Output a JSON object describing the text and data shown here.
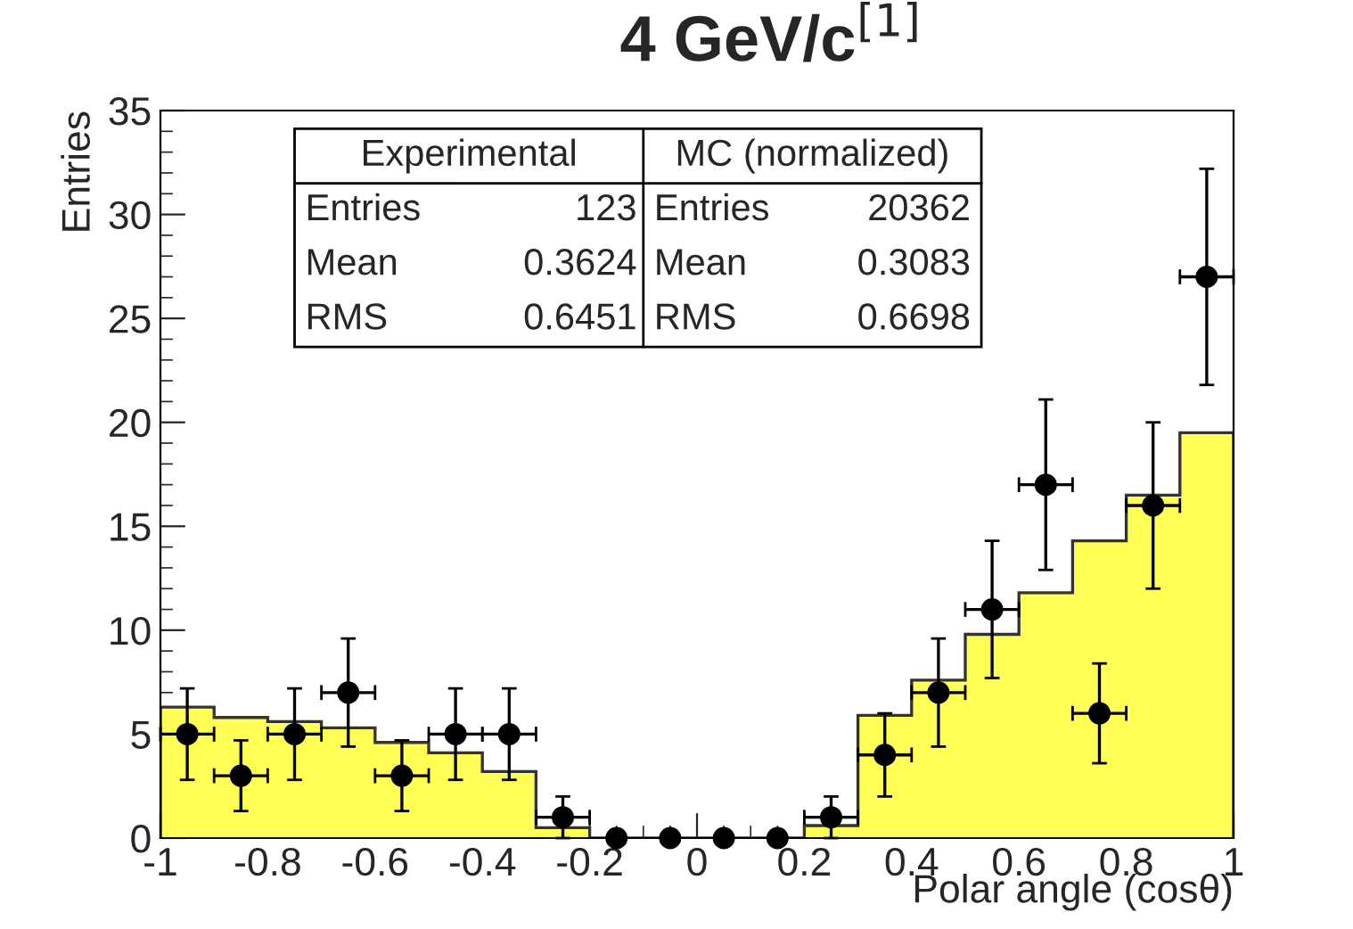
{
  "chart_data": {
    "type": "histogram",
    "title": "4 GeV/c$^{[1]}$",
    "xlabel": "Polar angle (cosθ)",
    "ylabel": "Entries",
    "bins": [
      -1,
      -0.9,
      -0.8,
      -0.7,
      -0.6,
      -0.5,
      -0.4,
      -0.3,
      -0.2,
      -0.1,
      0,
      0.1,
      0.2,
      0.3,
      0.4,
      0.5,
      0.6,
      0.7,
      0.8,
      0.9,
      1
    ],
    "series": [
      {
        "color": "#ffff55",
        "values": [
          6.3,
          5.8,
          5.6,
          5.3,
          4.6,
          4.1,
          3.2,
          0.5,
          0,
          0,
          0,
          0,
          0.6,
          5.9,
          7.6,
          9.8,
          11.8,
          14.3,
          16.5,
          19.5
        ]
      },
      {
        "type": "scatter",
        "color": "#000000",
        "x": [
          -0.95,
          -0.85,
          -0.75,
          -0.65,
          -0.55,
          -0.45,
          -0.35,
          -0.25,
          -0.15,
          -0.05,
          0.05,
          0.15,
          0.25,
          0.35,
          0.45,
          0.55,
          0.65,
          0.75,
          0.85,
          0.95
        ],
        "values": [
          5,
          3,
          5,
          7,
          3,
          5,
          5,
          1,
          0,
          0,
          0,
          0,
          1,
          4,
          7,
          11,
          17,
          6,
          16,
          27
        ],
        "errors": [
          2.2,
          1.7,
          2.2,
          2.6,
          1.7,
          2.2,
          2.2,
          1,
          null,
          null,
          null,
          null,
          1,
          2,
          2.6,
          3.3,
          4.1,
          2.4,
          4,
          5.2
        ],
        "xerrors": [
          0.05,
          0.05,
          0.05,
          0.05,
          0.05,
          0.05,
          0.05,
          0.05,
          null,
          null,
          null,
          null,
          0.05,
          0.05,
          0.05,
          0.05,
          0.05,
          0.05,
          0.05,
          0.05
        ]
      }
    ],
    "xlim": [
      -1,
      1
    ],
    "xticks": [
      -1,
      -0.8,
      -0.6,
      -0.4,
      -0.2,
      0,
      0.2,
      0.4,
      0.6,
      0.8,
      1
    ],
    "ylim": [
      0,
      35
    ],
    "yticks": [
      0,
      5,
      10,
      15,
      20,
      25,
      30,
      35
    ],
    "marker": "circle",
    "grid": false,
    "legend": false,
    "annotations": [
      "Experimental",
      "MC (normalized)",
      "Entries",
      "123",
      "Entries",
      "20362",
      "Mean",
      "0.3624",
      "Mean",
      "0.3083",
      "RMS",
      "0.6451",
      "RMS",
      "0.6698"
    ]
  }
}
